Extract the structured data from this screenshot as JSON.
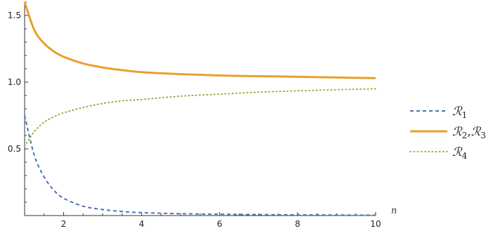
{
  "chart_data": {
    "type": "line",
    "title": "",
    "xlabel": "n",
    "ylabel": "",
    "xlim": [
      1,
      10
    ],
    "ylim": [
      0,
      1.6
    ],
    "x_ticks": [
      2,
      4,
      6,
      8,
      10
    ],
    "y_ticks": [
      0.5,
      1.0,
      1.5
    ],
    "x_tick_labels": [
      "2",
      "4",
      "6",
      "8",
      "10"
    ],
    "y_tick_labels": [
      "0.5",
      "1.0",
      "1.5"
    ],
    "grid": false,
    "legend_position": "right",
    "series": [
      {
        "name": "R1",
        "legend_label": {
          "letter": "ℛ",
          "subscripts": [
            "1"
          ]
        },
        "color": "#4a74b4",
        "style": "dashed",
        "x": [
          1,
          1.25,
          1.5,
          1.75,
          2,
          2.5,
          3,
          3.5,
          4,
          5,
          6,
          7,
          8,
          9,
          10
        ],
        "y": [
          0.75,
          0.45,
          0.29,
          0.19,
          0.13,
          0.07,
          0.045,
          0.03,
          0.022,
          0.014,
          0.01,
          0.007,
          0.005,
          0.004,
          0.003
        ]
      },
      {
        "name": "R2,R3",
        "legend_label": {
          "letter": "ℛ",
          "subscripts": [
            "2",
            "3"
          ]
        },
        "color": "#e8a02c",
        "style": "solid",
        "x": [
          1,
          1.25,
          1.5,
          1.75,
          2,
          2.5,
          3,
          3.5,
          4,
          5,
          6,
          7,
          8,
          9,
          10
        ],
        "y": [
          1.6,
          1.39,
          1.29,
          1.23,
          1.19,
          1.14,
          1.11,
          1.09,
          1.075,
          1.06,
          1.05,
          1.045,
          1.04,
          1.035,
          1.03
        ]
      },
      {
        "name": "R4",
        "legend_label": {
          "letter": "ℛ",
          "subscripts": [
            "4"
          ]
        },
        "color": "#9aa028",
        "style": "dotted",
        "x": [
          1,
          1.25,
          1.5,
          1.75,
          2,
          2.5,
          3,
          3.5,
          4,
          5,
          6,
          7,
          8,
          9,
          10
        ],
        "y": [
          0.52,
          0.63,
          0.7,
          0.74,
          0.77,
          0.81,
          0.84,
          0.86,
          0.87,
          0.895,
          0.91,
          0.925,
          0.935,
          0.943,
          0.95
        ]
      }
    ]
  }
}
